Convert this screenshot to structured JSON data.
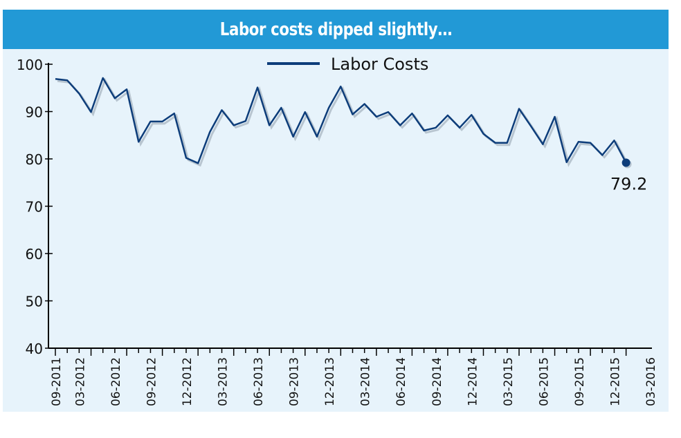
{
  "chart_data": {
    "type": "line",
    "title": "Labor costs dipped slightly…",
    "legend": {
      "placement": "top-center",
      "entries": [
        "Labor Costs"
      ]
    },
    "ylim": [
      40,
      100
    ],
    "yticks": [
      "40",
      "50",
      "60",
      "70",
      "80",
      "90",
      "100"
    ],
    "xlabels": [
      "09-2011",
      "03-2012",
      "06-2012",
      "09-2012",
      "12-2012",
      "03-2013",
      "06-2013",
      "09-2013",
      "12-2013",
      "03-2014",
      "06-2014",
      "09-2014",
      "12-2014",
      "03-2015",
      "06-2015",
      "09-2015",
      "12-2015",
      "03-2016"
    ],
    "series": [
      {
        "name": "Labor Costs",
        "color": "#0d3d7a",
        "values": [
          96.9,
          96.6,
          93.8,
          89.9,
          97.1,
          92.8,
          94.7,
          83.6,
          87.9,
          87.9,
          89.6,
          80.2,
          79.1,
          85.7,
          90.3,
          87.1,
          88.0,
          95.1,
          87.1,
          90.8,
          84.7,
          89.9,
          84.7,
          90.8,
          95.3,
          89.4,
          91.6,
          88.9,
          89.9,
          87.1,
          89.6,
          86.0,
          86.6,
          89.2,
          86.6,
          89.3,
          85.3,
          83.4,
          83.4,
          90.6,
          86.9,
          83.1,
          88.9,
          79.3,
          83.6,
          83.4,
          80.8,
          83.9,
          79.2
        ]
      }
    ],
    "annotation": {
      "text": "79.2"
    }
  }
}
